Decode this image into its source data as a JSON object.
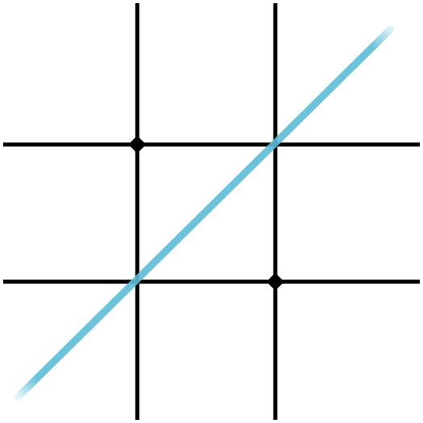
{
  "game": {
    "type": "tic-tac-toe",
    "board": {
      "rows": 3,
      "columns": 3,
      "cells": [
        [
          "",
          "",
          ""
        ],
        [
          "",
          "",
          ""
        ],
        [
          "",
          "",
          ""
        ]
      ]
    },
    "winning_line": {
      "direction": "diagonal",
      "from_cell": [
        2,
        0
      ],
      "to_cell": [
        0,
        2
      ]
    },
    "colors": {
      "background": "#ffffff",
      "grid": "#000000",
      "winning_line": "#5bbcd6"
    },
    "grid_intersection_markers": [
      [
        0,
        0
      ],
      [
        1,
        1
      ]
    ]
  }
}
